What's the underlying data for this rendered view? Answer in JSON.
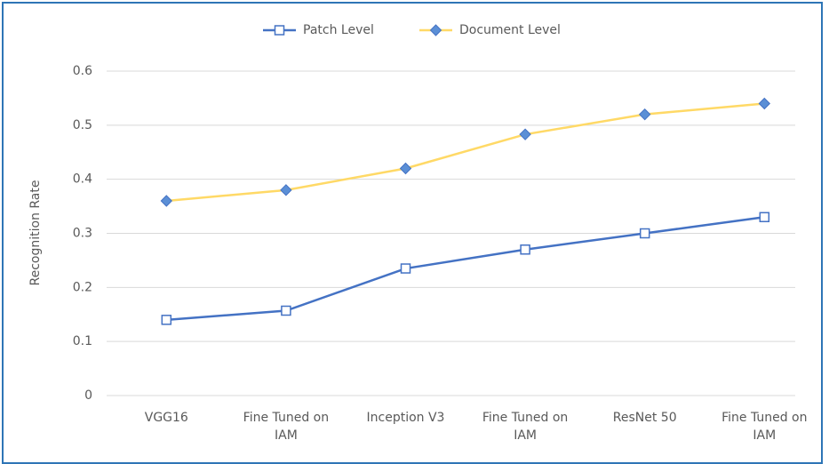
{
  "chart_data": {
    "type": "line",
    "y_label": "Recognition Rate",
    "categories": [
      "VGG16",
      "Fine Tuned on IAM",
      "Inception V3",
      "Fine Tuned on IAM",
      "ResNet 50",
      "Fine Tuned on IAM"
    ],
    "series": [
      {
        "name": "Patch Level",
        "color": "#4472c4",
        "marker": "square",
        "values": [
          0.14,
          0.157,
          0.235,
          0.27,
          0.3,
          0.33
        ]
      },
      {
        "name": "Document Level",
        "color": "#ffd966",
        "marker": "diamond",
        "values": [
          0.36,
          0.38,
          0.42,
          0.483,
          0.52,
          0.54
        ]
      }
    ],
    "ylim": [
      0,
      0.6
    ],
    "yticks": [
      0,
      0.1,
      0.2,
      0.3,
      0.4,
      0.5,
      0.6
    ],
    "grid": true,
    "legend": "top"
  }
}
